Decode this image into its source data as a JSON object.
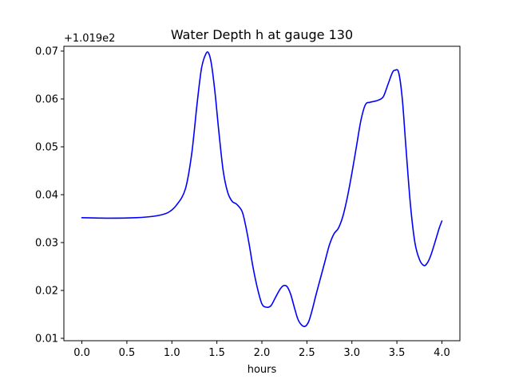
{
  "chart_data": {
    "type": "line",
    "title": "Water Depth h at gauge 130",
    "xlabel": "hours",
    "ylabel": "",
    "offset_text": "+1.019e2",
    "xlim": [
      -0.2,
      4.2
    ],
    "ylim": [
      0.0095,
      0.071
    ],
    "xticks": [
      0.0,
      0.5,
      1.0,
      1.5,
      2.0,
      2.5,
      3.0,
      3.5,
      4.0
    ],
    "xtick_labels": [
      "0.0",
      "0.5",
      "1.0",
      "1.5",
      "2.0",
      "2.5",
      "3.0",
      "3.5",
      "4.0"
    ],
    "yticks": [
      0.01,
      0.02,
      0.03,
      0.04,
      0.05,
      0.06,
      0.07
    ],
    "ytick_labels": [
      "0.01",
      "0.02",
      "0.03",
      "0.04",
      "0.05",
      "0.06",
      "0.07"
    ],
    "grid": false,
    "series": [
      {
        "color": "#0000ff",
        "x": [
          0.0,
          0.3,
          0.6,
          0.8,
          0.95,
          1.05,
          1.15,
          1.22,
          1.28,
          1.33,
          1.38,
          1.41,
          1.44,
          1.48,
          1.52,
          1.57,
          1.62,
          1.67,
          1.72,
          1.78,
          1.82,
          1.86,
          1.9,
          1.95,
          2.0,
          2.05,
          2.1,
          2.15,
          2.2,
          2.24,
          2.28,
          2.32,
          2.36,
          2.4,
          2.44,
          2.48,
          2.52,
          2.56,
          2.6,
          2.65,
          2.7,
          2.75,
          2.8,
          2.85,
          2.9,
          2.95,
          3.0,
          3.05,
          3.1,
          3.15,
          3.2,
          3.25,
          3.3,
          3.35,
          3.4,
          3.45,
          3.48,
          3.52,
          3.56,
          3.6,
          3.65,
          3.7,
          3.75,
          3.8,
          3.84,
          3.88,
          3.93,
          3.97,
          4.0
        ],
        "values": [
          0.0352,
          0.0351,
          0.0352,
          0.0355,
          0.0362,
          0.0378,
          0.0412,
          0.0485,
          0.059,
          0.0665,
          0.0695,
          0.0695,
          0.0672,
          0.0612,
          0.0535,
          0.045,
          0.0405,
          0.0386,
          0.038,
          0.0365,
          0.0335,
          0.0295,
          0.025,
          0.0205,
          0.0172,
          0.0165,
          0.0168,
          0.0185,
          0.0202,
          0.021,
          0.0208,
          0.0192,
          0.0165,
          0.014,
          0.0128,
          0.0125,
          0.0135,
          0.016,
          0.019,
          0.0225,
          0.026,
          0.0295,
          0.0318,
          0.033,
          0.0355,
          0.0395,
          0.0445,
          0.05,
          0.0555,
          0.0588,
          0.0593,
          0.0595,
          0.0598,
          0.0605,
          0.063,
          0.0655,
          0.066,
          0.0655,
          0.06,
          0.05,
          0.038,
          0.03,
          0.0265,
          0.0252,
          0.0258,
          0.0275,
          0.0305,
          0.033,
          0.0345
        ]
      }
    ]
  }
}
